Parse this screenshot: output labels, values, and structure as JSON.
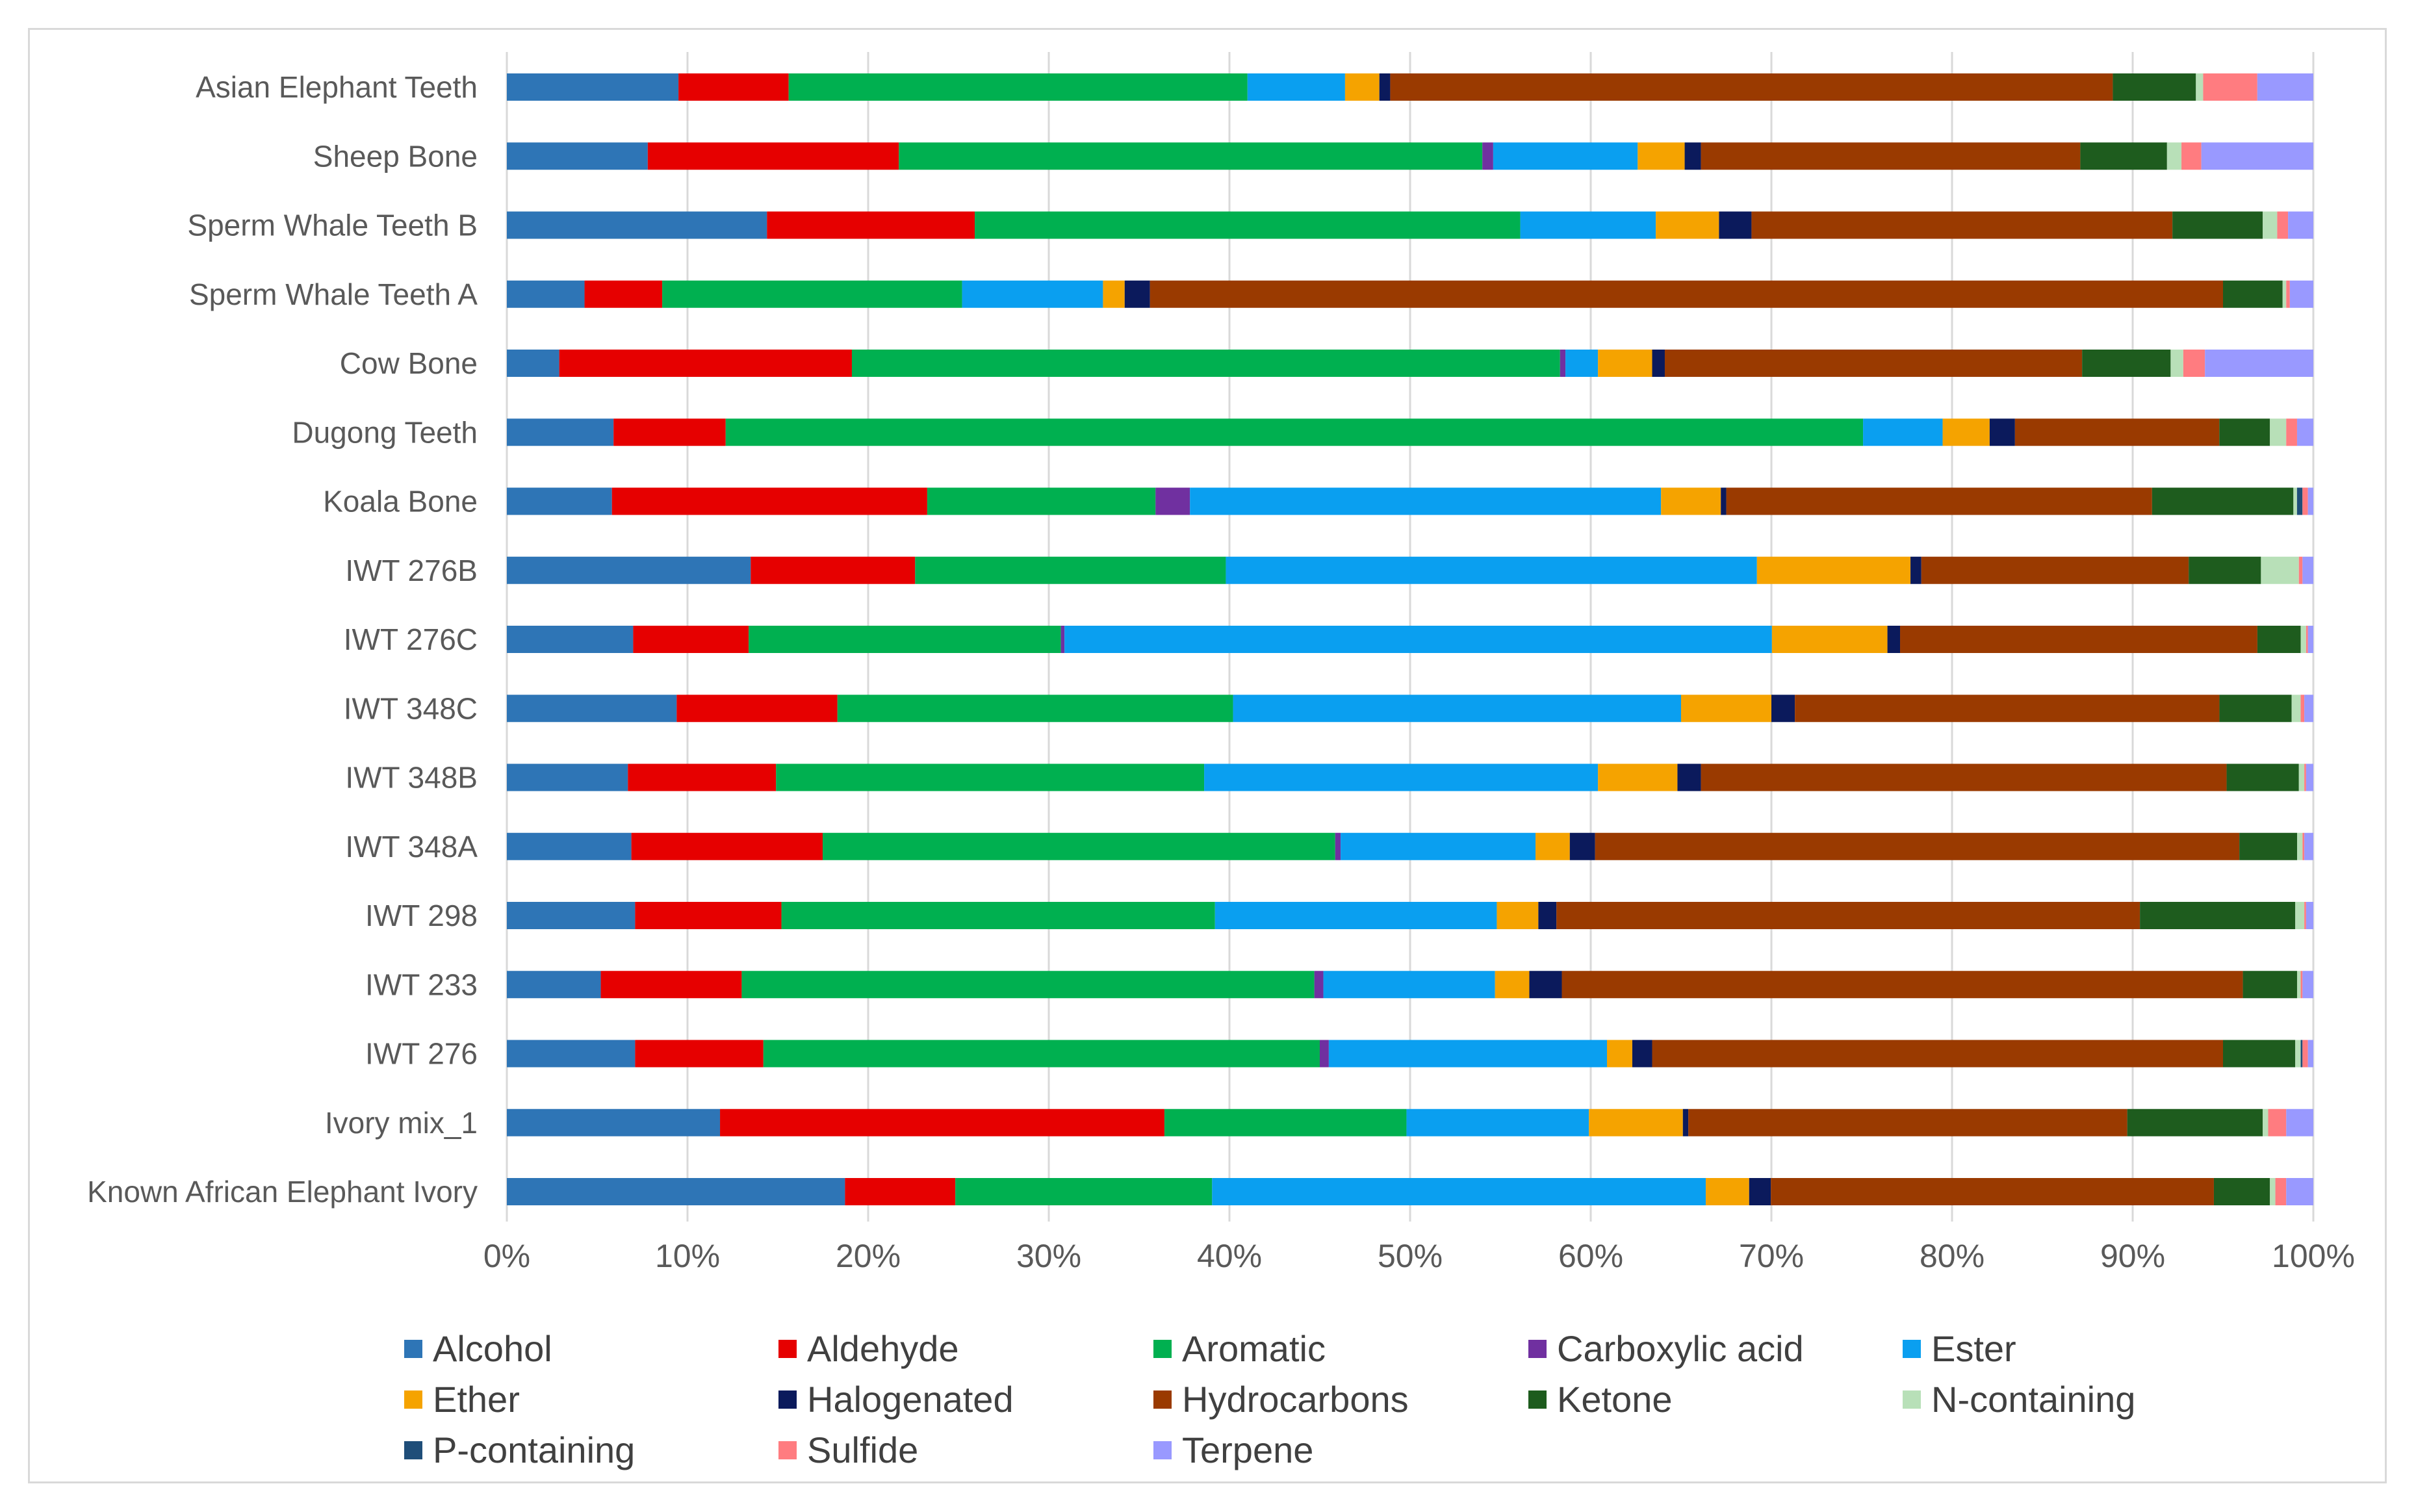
{
  "chart_data": {
    "type": "bar",
    "orientation": "horizontal",
    "stacked": "percent",
    "title": "",
    "xlabel": "",
    "ylabel": "",
    "xlim": [
      0,
      100
    ],
    "x_ticks": [
      "0%",
      "10%",
      "20%",
      "30%",
      "40%",
      "50%",
      "60%",
      "70%",
      "80%",
      "90%",
      "100%"
    ],
    "grid": "vertical",
    "legend_position": "bottom",
    "categories": [
      "Asian Elephant Teeth",
      "Sheep Bone",
      "Sperm Whale Teeth B",
      "Sperm Whale Teeth A",
      "Cow Bone",
      "Dugong Teeth",
      "Koala Bone",
      "IWT 276B",
      "IWT 276C",
      "IWT 348C",
      "IWT 348B",
      "IWT 348A",
      "IWT 298",
      "IWT 233",
      "IWT 276",
      "Ivory mix_1",
      "Known African Elephant Ivory"
    ],
    "series": [
      {
        "name": "Alcohol",
        "color": "#2e75b6",
        "values": [
          9.5,
          7.8,
          14.4,
          4.3,
          2.9,
          5.9,
          5.8,
          13.5,
          7.0,
          9.4,
          6.7,
          6.9,
          7.1,
          5.2,
          7.1,
          11.8,
          18.7
        ]
      },
      {
        "name": "Aldehyde",
        "color": "#e60000",
        "values": [
          6.1,
          13.9,
          11.5,
          4.3,
          16.2,
          6.2,
          17.4,
          9.1,
          6.4,
          8.9,
          8.2,
          10.6,
          8.1,
          7.8,
          7.1,
          24.6,
          6.1
        ]
      },
      {
        "name": "Aromatic",
        "color": "#00b050",
        "values": [
          25.4,
          32.3,
          30.2,
          16.6,
          39.2,
          62.9,
          12.6,
          17.2,
          17.3,
          21.9,
          23.7,
          28.4,
          24.0,
          31.7,
          30.8,
          13.4,
          14.2
        ]
      },
      {
        "name": "Carboxylic acid",
        "color": "#7030a0",
        "values": [
          0,
          0.6,
          0,
          0,
          0.3,
          0,
          1.9,
          0,
          0.2,
          0,
          0,
          0.3,
          0,
          0.5,
          0.5,
          0,
          0
        ]
      },
      {
        "name": "Ester",
        "color": "#0a9ff0",
        "values": [
          5.4,
          8.0,
          7.5,
          7.8,
          1.8,
          4.4,
          26.0,
          29.4,
          39.2,
          24.8,
          21.8,
          10.8,
          15.6,
          9.5,
          15.4,
          10.1,
          27.3
        ]
      },
      {
        "name": "Ether",
        "color": "#f5a300",
        "values": [
          1.9,
          2.6,
          3.5,
          1.2,
          3.0,
          2.6,
          3.3,
          8.5,
          6.4,
          5.0,
          4.4,
          1.9,
          2.3,
          1.9,
          1.4,
          5.2,
          2.4
        ]
      },
      {
        "name": "Halogenated",
        "color": "#0b1a5c",
        "values": [
          0.6,
          0.9,
          1.8,
          1.4,
          0.7,
          1.4,
          0.3,
          0.6,
          0.7,
          1.3,
          1.3,
          1.4,
          1.0,
          1.8,
          1.1,
          0.3,
          1.2
        ]
      },
      {
        "name": "Hydrocarbons",
        "color": "#9a3a00",
        "values": [
          40.0,
          21.0,
          23.3,
          59.4,
          23.1,
          11.3,
          23.5,
          14.8,
          19.8,
          23.5,
          29.1,
          35.7,
          32.3,
          37.7,
          31.6,
          24.3,
          24.5
        ]
      },
      {
        "name": "Ketone",
        "color": "#1e5c1e",
        "values": [
          4.6,
          4.8,
          5.0,
          3.3,
          4.9,
          2.8,
          7.8,
          4.0,
          2.4,
          4.0,
          4.0,
          3.2,
          8.6,
          3.0,
          4.0,
          7.5,
          3.1
        ]
      },
      {
        "name": "N-containing",
        "color": "#b8e0b8",
        "values": [
          0.4,
          0.8,
          0.8,
          0.2,
          0.7,
          0.9,
          0.2,
          2.1,
          0.3,
          0.5,
          0.3,
          0.3,
          0.5,
          0.2,
          0.3,
          0.3,
          0.3
        ]
      },
      {
        "name": "P-containing",
        "color": "#1f4e79",
        "values": [
          0,
          0,
          0,
          0,
          0,
          0,
          0.3,
          0,
          0,
          0,
          0,
          0,
          0,
          0,
          0.1,
          0,
          0
        ]
      },
      {
        "name": "Sulfide",
        "color": "#ff7c80",
        "values": [
          3.0,
          1.1,
          0.6,
          0.2,
          1.2,
          0.6,
          0.3,
          0.2,
          0.1,
          0.2,
          0.1,
          0.1,
          0.1,
          0.1,
          0.3,
          1.0,
          0.6
        ]
      },
      {
        "name": "Terpene",
        "color": "#9999ff",
        "values": [
          3.1,
          6.2,
          1.4,
          1.3,
          6.0,
          0.9,
          0.3,
          0.6,
          0.3,
          0.5,
          0.4,
          0.5,
          0.4,
          0.6,
          0.3,
          1.5,
          1.5
        ]
      }
    ]
  }
}
